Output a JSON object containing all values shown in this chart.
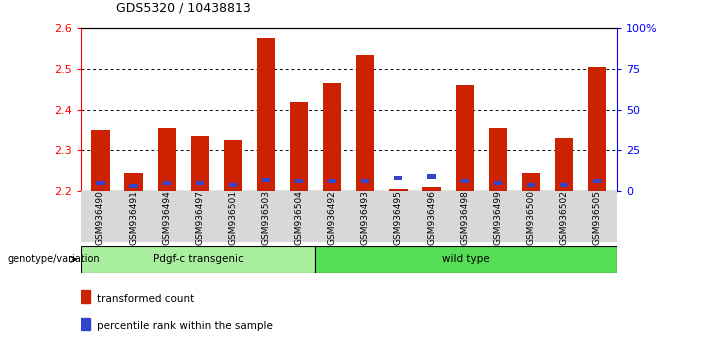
{
  "title": "GDS5320 / 10438813",
  "samples": [
    "GSM936490",
    "GSM936491",
    "GSM936494",
    "GSM936497",
    "GSM936501",
    "GSM936503",
    "GSM936504",
    "GSM936492",
    "GSM936493",
    "GSM936495",
    "GSM936496",
    "GSM936498",
    "GSM936499",
    "GSM936500",
    "GSM936502",
    "GSM936505"
  ],
  "red_values": [
    2.35,
    2.245,
    2.355,
    2.335,
    2.325,
    2.575,
    2.42,
    2.465,
    2.535,
    2.205,
    2.21,
    2.46,
    2.355,
    2.245,
    2.33,
    2.505
  ],
  "blue_pct": [
    5,
    3,
    5,
    5,
    4,
    7,
    6,
    6,
    6,
    8,
    9,
    6,
    5,
    4,
    4,
    6
  ],
  "ymin": 2.2,
  "ymax": 2.6,
  "yticks": [
    2.2,
    2.3,
    2.4,
    2.5,
    2.6
  ],
  "right_yticks": [
    0,
    25,
    50,
    75,
    100
  ],
  "group1_label": "Pdgf-c transgenic",
  "group2_label": "wild type",
  "group1_count": 7,
  "group2_count": 9,
  "genotype_label": "genotype/variation",
  "legend_red": "transformed count",
  "legend_blue": "percentile rank within the sample",
  "bar_color": "#cc2200",
  "blue_color": "#3344cc",
  "group1_bg": "#aaeea0",
  "group2_bg": "#55dd55",
  "xtick_bg": "#d8d8d8"
}
